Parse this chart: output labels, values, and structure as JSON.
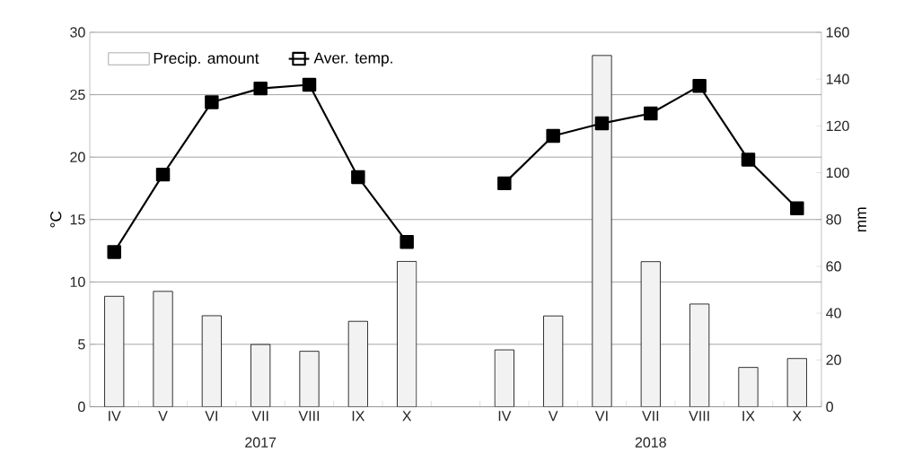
{
  "chart_data": {
    "type": "bar",
    "categories": [
      "IV",
      "V",
      "VI",
      "VII",
      "VIII",
      "IX",
      "X",
      null,
      "IV",
      "V",
      "VI",
      "VII",
      "VIII",
      "IX",
      "X"
    ],
    "series": [
      {
        "name": "Precip. amount",
        "type": "bar",
        "axis": "y2",
        "color": "#f2f2f2",
        "values": [
          47.2,
          49.3,
          38.9,
          26.6,
          23.7,
          36.5,
          62.1,
          null,
          24.3,
          38.8,
          150.1,
          62.0,
          43.9,
          16.8,
          20.6
        ]
      },
      {
        "name": "Aver. temp.",
        "type": "line",
        "color": "#000000",
        "marker": "square",
        "values": [
          12.4,
          18.6,
          24.4,
          25.5,
          25.8,
          18.4,
          13.2,
          null,
          17.9,
          21.7,
          22.7,
          23.5,
          25.7,
          19.8,
          15.9
        ]
      }
    ],
    "ylabel": "°C",
    "y2label": "mm",
    "ylim": [
      0,
      30
    ],
    "yticks": [
      0,
      5,
      10,
      15,
      20,
      25,
      30
    ],
    "y2lim": [
      0,
      160
    ],
    "y2ticks": [
      0,
      20,
      40,
      60,
      80,
      100,
      120,
      140,
      160
    ],
    "annotations": [
      "2017",
      "2018"
    ],
    "grid": "y",
    "legend": "top left"
  }
}
